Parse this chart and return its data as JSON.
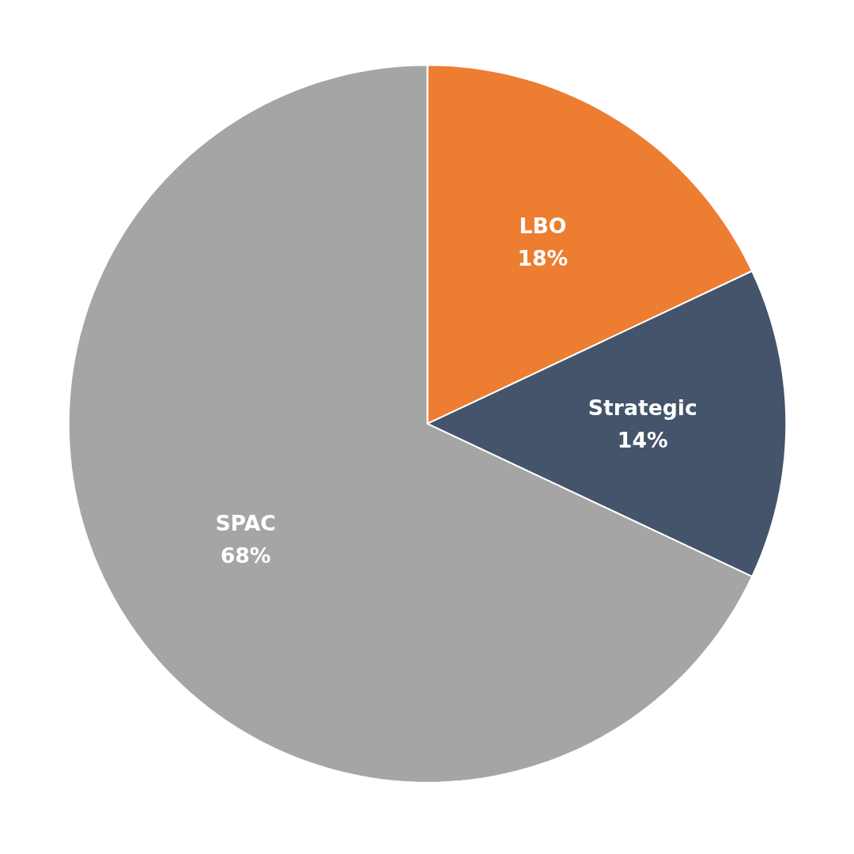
{
  "chart_data": {
    "type": "pie",
    "categories": [
      "LBO",
      "Strategic",
      "SPAC"
    ],
    "values": [
      18,
      14,
      68
    ],
    "colors": [
      "#ed7d31",
      "#44546a",
      "#a5a5a5"
    ],
    "value_labels": [
      "18%",
      "14%",
      "68%"
    ]
  }
}
